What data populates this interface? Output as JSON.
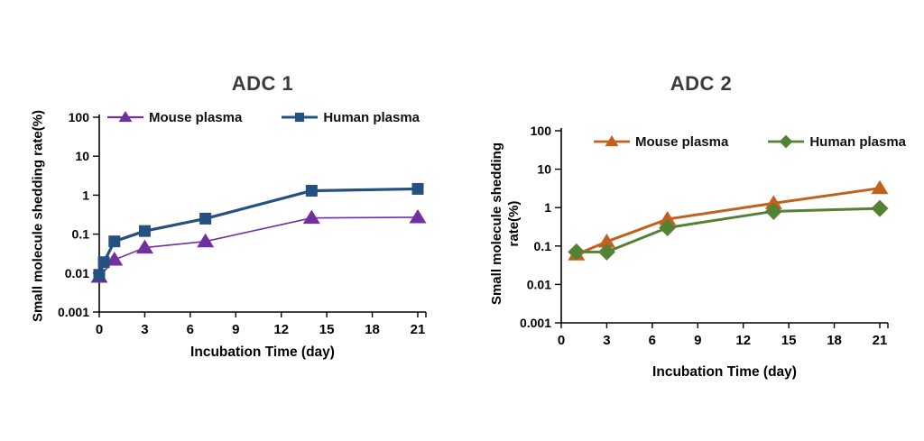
{
  "page": {
    "background": "#FFFFFF"
  },
  "chart_data": [
    {
      "type": "line",
      "title": "ADC 1",
      "xlabel": "Incubation Time (day)",
      "ylabel": "Small molecule shedding rate(%)",
      "x_ticks": [
        0,
        3,
        6,
        9,
        12,
        15,
        18,
        21
      ],
      "y_ticks": [
        100,
        10,
        1,
        0.1,
        0.01,
        0.001
      ],
      "xlim": [
        0,
        21
      ],
      "ylim": [
        0.001,
        100
      ],
      "y_scale": "log",
      "grid": false,
      "legend_position": "top-inside",
      "series": [
        {
          "name": "Mouse plasma",
          "marker": "triangle",
          "color": "#7030A0",
          "line_width": 1.6,
          "points": [
            [
              0,
              0.008
            ],
            [
              1,
              0.022
            ],
            [
              3,
              0.045
            ],
            [
              7,
              0.065
            ],
            [
              14,
              0.26
            ],
            [
              21,
              0.27
            ]
          ]
        },
        {
          "name": "Human plasma",
          "marker": "square",
          "color": "#24517F",
          "line_width": 3.2,
          "points": [
            [
              0,
              0.009
            ],
            [
              0.3,
              0.019
            ],
            [
              1,
              0.065
            ],
            [
              3,
              0.12
            ],
            [
              7,
              0.25
            ],
            [
              14,
              1.3
            ],
            [
              21,
              1.45
            ]
          ]
        }
      ]
    },
    {
      "type": "line",
      "title": "ADC 2",
      "xlabel": "Incubation Time (day)",
      "ylabel": "Small molecule shedding\nrate(%)",
      "x_ticks": [
        0,
        3,
        6,
        9,
        12,
        15,
        18,
        21
      ],
      "y_ticks": [
        100,
        10,
        1,
        0.1,
        0.01,
        0.001
      ],
      "xlim": [
        0,
        21
      ],
      "ylim": [
        0.001,
        100
      ],
      "y_scale": "log",
      "grid": false,
      "legend_position": "top-inside",
      "series": [
        {
          "name": "Mouse plasma",
          "marker": "triangle",
          "color": "#C2611C",
          "line_width": 3,
          "points": [
            [
              1,
              0.06
            ],
            [
              3,
              0.13
            ],
            [
              7,
              0.5
            ],
            [
              14,
              1.3
            ],
            [
              21,
              3.2
            ]
          ]
        },
        {
          "name": "Human plasma",
          "marker": "diamond",
          "color": "#548235",
          "line_width": 3,
          "points": [
            [
              1,
              0.07
            ],
            [
              3,
              0.07
            ],
            [
              7,
              0.3
            ],
            [
              14,
              0.8
            ],
            [
              21,
              0.95
            ]
          ]
        }
      ]
    }
  ]
}
